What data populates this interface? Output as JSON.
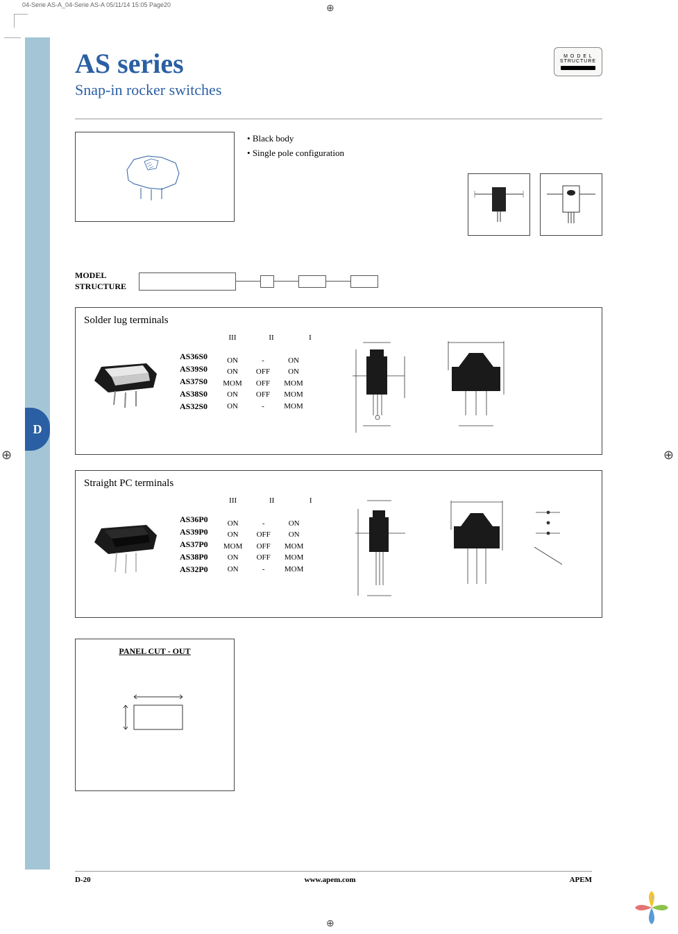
{
  "crop_header": "04-Serie AS-A_04-Serie AS-A  05/11/14  15:05  Page20",
  "side_tab": "D",
  "title": "AS series",
  "subtitle": "Snap-in rocker switches",
  "model_badge": {
    "l1": "M O D E L",
    "l2": "STRUCTURE"
  },
  "bullets": [
    "Black body",
    "Single pole configuration"
  ],
  "model_structure_label": "MODEL\nSTRUCTURE",
  "sections": [
    {
      "title": "Solder lug terminals",
      "models": [
        "AS36S0",
        "AS39S0",
        "AS37S0",
        "AS38S0",
        "AS32S0"
      ],
      "pos_header": [
        "III",
        "II",
        "I"
      ],
      "positions": [
        [
          "ON",
          "-",
          "ON"
        ],
        [
          "ON",
          "OFF",
          "ON"
        ],
        [
          "MOM",
          "OFF",
          "MOM"
        ],
        [
          "ON",
          "OFF",
          "MOM"
        ],
        [
          "ON",
          "-",
          "MOM"
        ]
      ],
      "img_variant": "white-rocker"
    },
    {
      "title": "Straight PC terminals",
      "models": [
        "AS36P0",
        "AS39P0",
        "AS37P0",
        "AS38P0",
        "AS32P0"
      ],
      "pos_header": [
        "III",
        "II",
        "I"
      ],
      "positions": [
        [
          "ON",
          "-",
          "ON"
        ],
        [
          "ON",
          "OFF",
          "ON"
        ],
        [
          "MOM",
          "OFF",
          "MOM"
        ],
        [
          "ON",
          "OFF",
          "MOM"
        ],
        [
          "ON",
          "-",
          "MOM"
        ]
      ],
      "img_variant": "black-rocker"
    }
  ],
  "panel_cutout_title": "PANEL CUT - OUT",
  "footer": {
    "page": "D-20",
    "url": "www.apem.com",
    "brand": "APEM"
  },
  "colors": {
    "blue": "#2b5fa3",
    "side_strip": "#a3c5d6",
    "rule": "#999999",
    "border": "#444444"
  }
}
